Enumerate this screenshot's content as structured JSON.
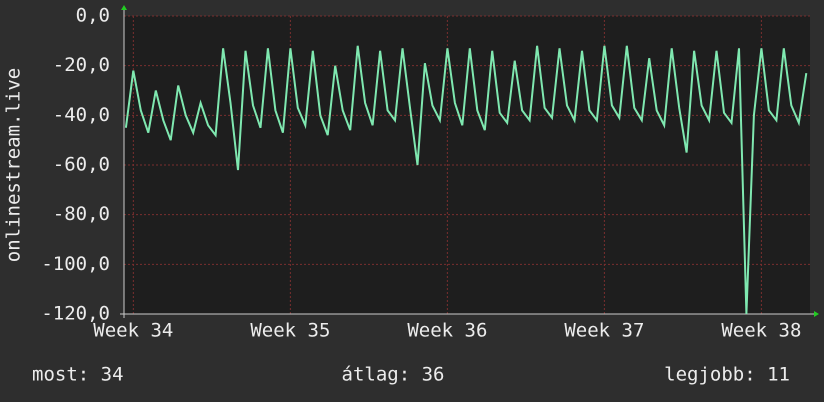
{
  "chart_data": {
    "type": "line",
    "ylabel": "onlinestream.live",
    "x": [
      -8,
      0,
      8,
      16,
      24,
      32,
      40,
      48,
      56,
      64,
      72,
      80,
      88,
      96,
      104,
      112,
      120,
      128,
      136,
      144,
      152,
      160,
      168,
      176,
      184,
      192,
      200,
      208,
      216,
      224,
      232,
      240,
      248,
      256,
      264,
      272,
      280,
      288,
      296,
      304,
      312,
      320,
      328,
      336,
      344,
      352,
      360,
      368,
      376,
      384,
      392,
      400,
      408,
      416,
      424,
      432,
      440,
      448,
      456,
      464,
      472,
      480,
      488,
      496,
      504,
      512,
      520,
      528,
      536,
      544,
      552,
      560,
      568,
      576,
      584,
      592,
      600,
      608,
      616,
      624,
      632,
      640,
      648,
      656,
      664,
      672,
      680,
      688,
      696,
      704,
      712,
      720
    ],
    "values": [
      -45,
      -22,
      -38,
      -47,
      -30,
      -42,
      -50,
      -28,
      -40,
      -47,
      -35,
      -44,
      -48,
      -13,
      -35,
      -62,
      -14,
      -36,
      -45,
      -13,
      -38,
      -47,
      -13,
      -37,
      -44,
      -14,
      -40,
      -48,
      -20,
      -38,
      -46,
      -12,
      -35,
      -44,
      -14,
      -38,
      -42,
      -13,
      -37,
      -60,
      -19,
      -36,
      -42,
      -13,
      -35,
      -44,
      -13,
      -38,
      -46,
      -14,
      -39,
      -43,
      -18,
      -38,
      -42,
      -12,
      -37,
      -41,
      -13,
      -36,
      -42,
      -14,
      -38,
      -42,
      -12,
      -36,
      -41,
      -12,
      -37,
      -42,
      -17,
      -38,
      -44,
      -13,
      -37,
      -55,
      -14,
      -36,
      -42,
      -14,
      -39,
      -43,
      -13,
      -120,
      -40,
      -13,
      -38,
      -42,
      -13,
      -36,
      -43,
      -23
    ],
    "color": "#7fe8b0",
    "xlim": [
      -10,
      724
    ],
    "xticks": [
      {
        "value": 0,
        "label": "Week 34"
      },
      {
        "value": 168,
        "label": "Week 35"
      },
      {
        "value": 336,
        "label": "Week 36"
      },
      {
        "value": 504,
        "label": "Week 37"
      },
      {
        "value": 672,
        "label": "Week 38"
      }
    ],
    "ylim": [
      -120,
      0
    ],
    "yticks": [
      {
        "value": 0,
        "label": "0,0"
      },
      {
        "value": -20,
        "label": "-20,0"
      },
      {
        "value": -40,
        "label": "-40,0"
      },
      {
        "value": -60,
        "label": "-60,0"
      },
      {
        "value": -80,
        "label": "-80,0"
      },
      {
        "value": -100,
        "label": "-100,0"
      },
      {
        "value": -120,
        "label": "-120,0"
      }
    ],
    "grid": true,
    "stats": [
      "most: 34",
      "átlag: 36",
      "legjobb: 11"
    ]
  }
}
